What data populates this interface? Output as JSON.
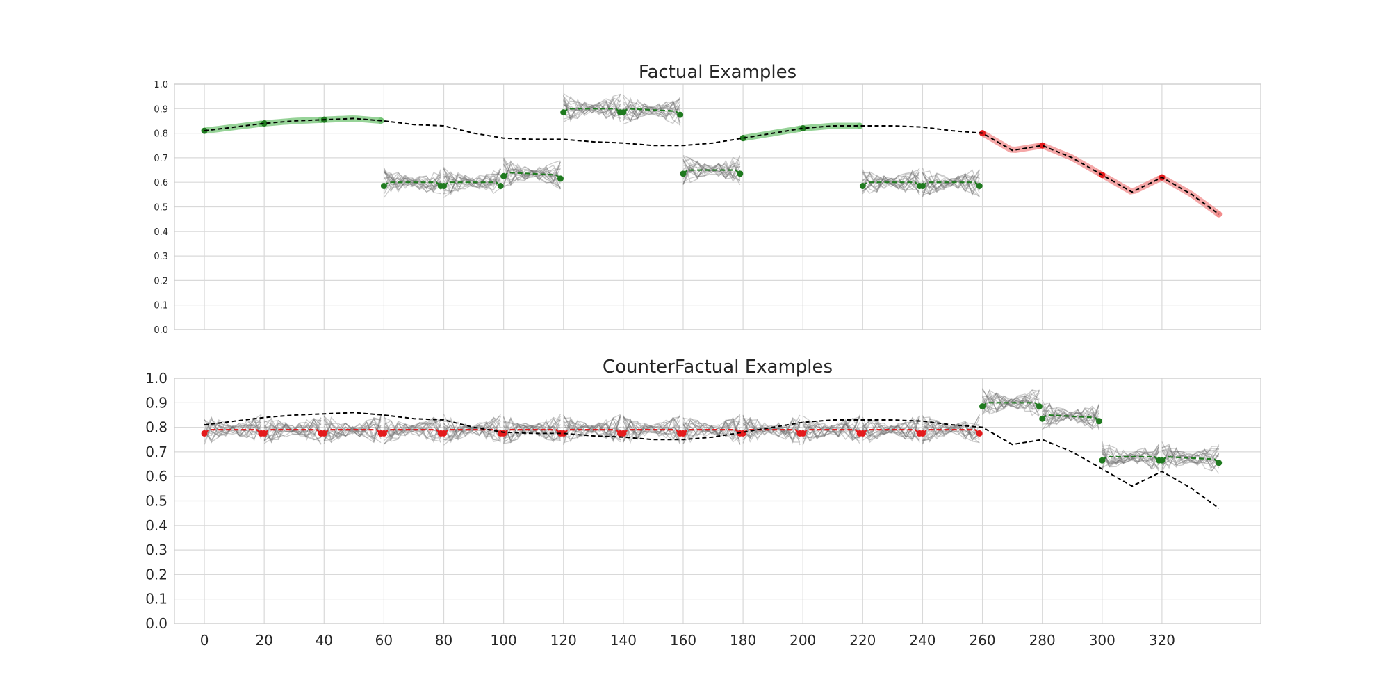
{
  "chart_data": [
    {
      "type": "line",
      "title": "Factual Examples",
      "xlabel": "",
      "ylabel": "",
      "xlim": [
        -10,
        353
      ],
      "ylim": [
        0,
        1
      ],
      "yticks": [
        0.0,
        0.1,
        0.2,
        0.3,
        0.4,
        0.5,
        0.6,
        0.7,
        0.8,
        0.9,
        1.0
      ],
      "ytick_labels": [
        "0.0",
        "0.1",
        "0.2",
        "0.3",
        "0.4",
        "0.5",
        "0.6",
        "0.7",
        "0.8",
        "0.9",
        "1.0"
      ],
      "xticks": [],
      "grid": true,
      "series": [
        {
          "kind": "reference",
          "x": [
            0,
            10,
            20,
            30,
            40,
            50,
            60,
            70,
            80,
            90,
            100,
            110,
            120,
            130,
            140,
            150,
            160,
            170,
            180,
            190,
            200,
            210,
            220,
            230,
            240,
            250,
            260,
            270,
            280,
            290,
            300,
            310,
            320,
            330,
            339
          ],
          "y": [
            0.81,
            0.825,
            0.84,
            0.85,
            0.855,
            0.86,
            0.85,
            0.835,
            0.83,
            0.8,
            0.78,
            0.775,
            0.775,
            0.765,
            0.76,
            0.75,
            0.75,
            0.76,
            0.78,
            0.8,
            0.82,
            0.83,
            0.83,
            0.83,
            0.825,
            0.81,
            0.8,
            0.73,
            0.75,
            0.7,
            0.63,
            0.56,
            0.62,
            0.55,
            0.47
          ]
        }
      ],
      "segments": [
        {
          "x0": 0,
          "x1": 19,
          "counterfactual": false,
          "outcome": "green",
          "y": [
            0.71,
            0.71
          ]
        },
        {
          "x0": 20,
          "x1": 39,
          "counterfactual": false,
          "outcome": "green",
          "y": [
            0.86,
            0.87
          ]
        },
        {
          "x0": 40,
          "x1": 59,
          "counterfactual": false,
          "outcome": "green",
          "y": [
            0.86,
            0.87
          ]
        },
        {
          "x0": 60,
          "x1": 79,
          "counterfactual": true,
          "outcome": "green",
          "y": [
            0.6,
            0.6
          ]
        },
        {
          "x0": 80,
          "x1": 99,
          "counterfactual": true,
          "outcome": "green",
          "y": [
            0.6,
            0.6
          ]
        },
        {
          "x0": 100,
          "x1": 119,
          "counterfactual": true,
          "outcome": "green",
          "y": [
            0.64,
            0.63
          ]
        },
        {
          "x0": 120,
          "x1": 139,
          "counterfactual": true,
          "outcome": "green",
          "y": [
            0.9,
            0.9
          ]
        },
        {
          "x0": 140,
          "x1": 159,
          "counterfactual": true,
          "outcome": "green",
          "y": [
            0.9,
            0.89
          ]
        },
        {
          "x0": 160,
          "x1": 179,
          "counterfactual": true,
          "outcome": "green",
          "y": [
            0.65,
            0.65
          ]
        },
        {
          "x0": 180,
          "x1": 199,
          "counterfactual": false,
          "outcome": "green",
          "y": [
            0.71,
            0.71
          ]
        },
        {
          "x0": 200,
          "x1": 219,
          "counterfactual": false,
          "outcome": "green",
          "y": [
            0.71,
            0.71
          ]
        },
        {
          "x0": 220,
          "x1": 239,
          "counterfactual": true,
          "outcome": "green",
          "y": [
            0.6,
            0.6
          ]
        },
        {
          "x0": 240,
          "x1": 259,
          "counterfactual": true,
          "outcome": "green",
          "y": [
            0.6,
            0.6
          ]
        },
        {
          "x0": 260,
          "x1": 279,
          "counterfactual": false,
          "outcome": "red",
          "y": [
            0.79,
            0.79
          ]
        },
        {
          "x0": 280,
          "x1": 299,
          "counterfactual": false,
          "outcome": "red",
          "y": [
            0.74,
            0.75
          ]
        },
        {
          "x0": 300,
          "x1": 319,
          "counterfactual": false,
          "outcome": "red",
          "y": [
            0.6,
            0.6
          ]
        },
        {
          "x0": 320,
          "x1": 339,
          "counterfactual": false,
          "outcome": "red",
          "y": [
            0.63,
            0.62
          ]
        }
      ]
    },
    {
      "type": "line",
      "title": "CounterFactual Examples",
      "xlabel": "",
      "ylabel": "",
      "xlim": [
        -10,
        353
      ],
      "ylim": [
        0,
        1
      ],
      "yticks": [
        0.0,
        0.1,
        0.2,
        0.3,
        0.4,
        0.5,
        0.6,
        0.7,
        0.8,
        0.9,
        1.0
      ],
      "ytick_labels": [
        "0.0",
        "0.1",
        "0.2",
        "0.3",
        "0.4",
        "0.5",
        "0.6",
        "0.7",
        "0.8",
        "0.9",
        "1.0"
      ],
      "xticks": [
        0,
        20,
        40,
        60,
        80,
        100,
        120,
        140,
        160,
        180,
        200,
        220,
        240,
        260,
        280,
        300,
        320
      ],
      "xtick_labels": [
        "0",
        "20",
        "40",
        "60",
        "80",
        "100",
        "120",
        "140",
        "160",
        "180",
        "200",
        "220",
        "240",
        "260",
        "280",
        "300",
        "320"
      ],
      "grid": true,
      "series": [
        {
          "kind": "reference",
          "x": [
            0,
            10,
            20,
            30,
            40,
            50,
            60,
            70,
            80,
            90,
            100,
            110,
            120,
            130,
            140,
            150,
            160,
            170,
            180,
            190,
            200,
            210,
            220,
            230,
            240,
            250,
            260,
            270,
            280,
            290,
            300,
            310,
            320,
            330,
            339
          ],
          "y": [
            0.81,
            0.825,
            0.84,
            0.85,
            0.855,
            0.86,
            0.85,
            0.835,
            0.83,
            0.8,
            0.78,
            0.775,
            0.775,
            0.765,
            0.76,
            0.75,
            0.75,
            0.76,
            0.78,
            0.8,
            0.82,
            0.83,
            0.83,
            0.83,
            0.825,
            0.81,
            0.8,
            0.73,
            0.75,
            0.7,
            0.63,
            0.56,
            0.62,
            0.55,
            0.47
          ]
        }
      ],
      "segments": [
        {
          "x0": 0,
          "x1": 19,
          "counterfactual": true,
          "outcome": "red",
          "y": [
            0.79,
            0.79
          ]
        },
        {
          "x0": 20,
          "x1": 39,
          "counterfactual": true,
          "outcome": "red",
          "y": [
            0.79,
            0.79
          ]
        },
        {
          "x0": 40,
          "x1": 59,
          "counterfactual": true,
          "outcome": "red",
          "y": [
            0.79,
            0.79
          ]
        },
        {
          "x0": 60,
          "x1": 79,
          "counterfactual": true,
          "outcome": "red",
          "y": [
            0.79,
            0.79
          ]
        },
        {
          "x0": 80,
          "x1": 99,
          "counterfactual": true,
          "outcome": "red",
          "y": [
            0.79,
            0.79
          ]
        },
        {
          "x0": 100,
          "x1": 119,
          "counterfactual": true,
          "outcome": "red",
          "y": [
            0.79,
            0.79
          ]
        },
        {
          "x0": 120,
          "x1": 139,
          "counterfactual": true,
          "outcome": "red",
          "y": [
            0.79,
            0.79
          ]
        },
        {
          "x0": 140,
          "x1": 159,
          "counterfactual": true,
          "outcome": "red",
          "y": [
            0.79,
            0.79
          ]
        },
        {
          "x0": 160,
          "x1": 179,
          "counterfactual": true,
          "outcome": "red",
          "y": [
            0.79,
            0.79
          ]
        },
        {
          "x0": 180,
          "x1": 199,
          "counterfactual": true,
          "outcome": "red",
          "y": [
            0.79,
            0.79
          ]
        },
        {
          "x0": 200,
          "x1": 219,
          "counterfactual": true,
          "outcome": "red",
          "y": [
            0.79,
            0.79
          ]
        },
        {
          "x0": 220,
          "x1": 239,
          "counterfactual": true,
          "outcome": "red",
          "y": [
            0.79,
            0.79
          ]
        },
        {
          "x0": 240,
          "x1": 259,
          "counterfactual": true,
          "outcome": "red",
          "y": [
            0.79,
            0.79
          ]
        },
        {
          "x0": 260,
          "x1": 279,
          "counterfactual": true,
          "outcome": "green",
          "y": [
            0.9,
            0.9
          ]
        },
        {
          "x0": 280,
          "x1": 299,
          "counterfactual": true,
          "outcome": "green",
          "y": [
            0.85,
            0.84
          ]
        },
        {
          "x0": 300,
          "x1": 319,
          "counterfactual": true,
          "outcome": "green",
          "y": [
            0.68,
            0.68
          ]
        },
        {
          "x0": 320,
          "x1": 339,
          "counterfactual": true,
          "outcome": "green",
          "y": [
            0.68,
            0.67
          ]
        }
      ]
    }
  ],
  "colors": {
    "grid": "#d9d9d9",
    "green_dark": "#1f7a1f",
    "green_light": "#74c476",
    "red_dark": "#e41a1c",
    "red_light": "#f28b8b",
    "band": "#6e6e6e",
    "reference": "#000000"
  }
}
